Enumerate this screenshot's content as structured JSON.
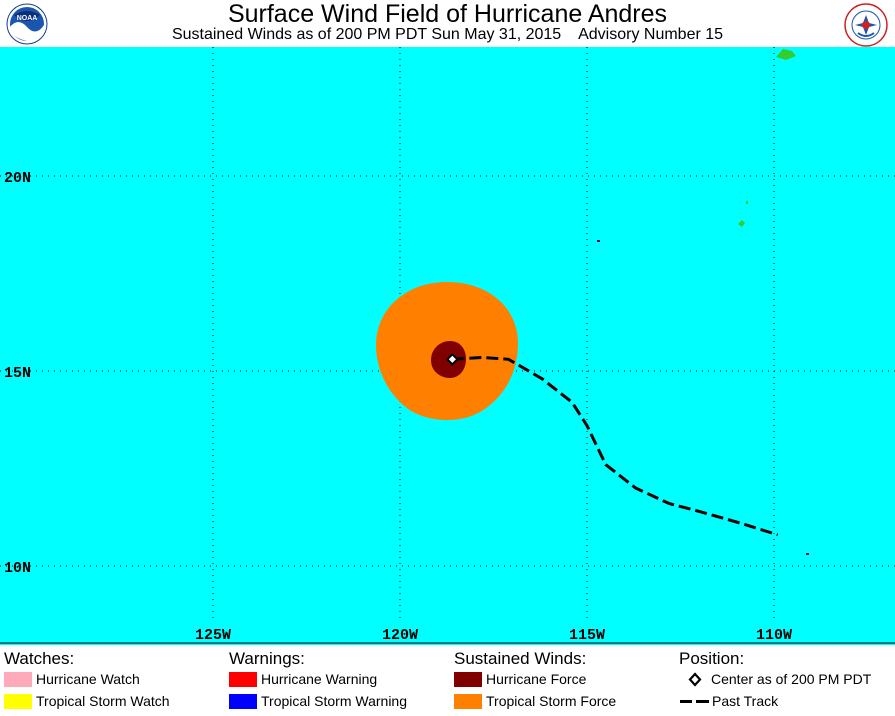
{
  "header": {
    "title": "Surface Wind Field of Hurricane Andres",
    "subtitle": "Sustained Winds as of 200 PM PDT Sun May 31, 2015    Advisory Number 15",
    "noaa_logo_text": "NOAA",
    "nws_logo_text": "NATIONAL WEATHER SERVICE"
  },
  "map": {
    "ocean_color": "#00ffff",
    "land_color": "#33cc33",
    "lat_labels": [
      {
        "lat": 20,
        "text": "20N"
      },
      {
        "lat": 15,
        "text": "15N"
      },
      {
        "lat": 10,
        "text": "10N"
      }
    ],
    "lon_labels": [
      {
        "lon": -125,
        "text": "125W"
      },
      {
        "lon": -120,
        "text": "120W"
      },
      {
        "lon": -115,
        "text": "115W"
      },
      {
        "lon": -110,
        "text": "110W"
      }
    ],
    "storm_center": {
      "lat": 15.3,
      "lon": -118.6
    },
    "hurricane_force_color": "#800000",
    "tropical_storm_force_color": "#ff8000",
    "past_track": [
      {
        "lat": 15.3,
        "lon": -118.6
      },
      {
        "lat": 15.35,
        "lon": -117.8
      },
      {
        "lat": 15.3,
        "lon": -117.1
      },
      {
        "lat": 14.8,
        "lon": -116.2
      },
      {
        "lat": 14.2,
        "lon": -115.4
      },
      {
        "lat": 13.6,
        "lon": -115.0
      },
      {
        "lat": 12.6,
        "lon": -114.5
      },
      {
        "lat": 12.0,
        "lon": -113.7
      },
      {
        "lat": 11.6,
        "lon": -112.8
      },
      {
        "lat": 11.4,
        "lon": -112.0
      },
      {
        "lat": 11.1,
        "lon": -110.9
      },
      {
        "lat": 10.8,
        "lon": -109.9
      }
    ]
  },
  "legend": {
    "watches": {
      "heading": "Watches:",
      "items": [
        {
          "label": "Hurricane Watch",
          "color": "#ffaabb"
        },
        {
          "label": "Tropical Storm Watch",
          "color": "#ffff00"
        }
      ]
    },
    "warnings": {
      "heading": "Warnings:",
      "items": [
        {
          "label": "Hurricane Warning",
          "color": "#ff0000"
        },
        {
          "label": "Tropical Storm Warning",
          "color": "#0000ff"
        }
      ]
    },
    "winds": {
      "heading": "Sustained Winds:",
      "items": [
        {
          "label": "Hurricane Force",
          "color": "#800000"
        },
        {
          "label": "Tropical Storm Force",
          "color": "#ff8000"
        }
      ]
    },
    "position": {
      "heading": "Position:",
      "center_label": "Center as of 200 PM PDT",
      "track_label": "Past Track"
    }
  }
}
